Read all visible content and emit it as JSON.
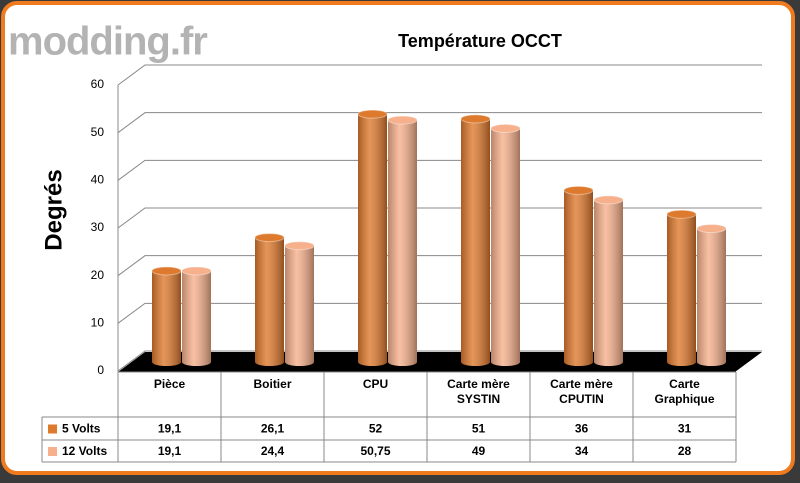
{
  "chart_data": {
    "type": "bar3d",
    "title": "Température OCCT",
    "watermark": "modding.fr",
    "ylabel": "Degrés",
    "categories": [
      "Pièce",
      "Boitier",
      "CPU",
      "Carte mère SYSTIN",
      "Carte mère CPUTIN",
      "Carte Graphique"
    ],
    "series": [
      {
        "name": "5 Volts",
        "color": "#de7a2e",
        "values": [
          19.1,
          26.1,
          52,
          51,
          36,
          31
        ],
        "value_labels": [
          "19,1",
          "26,1",
          "52",
          "51",
          "36",
          "31"
        ]
      },
      {
        "name": "12 Volts",
        "color": "#f6b08c",
        "values": [
          19.1,
          24.4,
          50.75,
          49,
          34,
          28
        ],
        "value_labels": [
          "19,1",
          "24,4",
          "50,75",
          "49",
          "34",
          "28"
        ]
      }
    ],
    "ylim": [
      0,
      60
    ],
    "yticks": [
      0,
      10,
      20,
      30,
      40,
      50,
      60
    ],
    "grid": true
  }
}
